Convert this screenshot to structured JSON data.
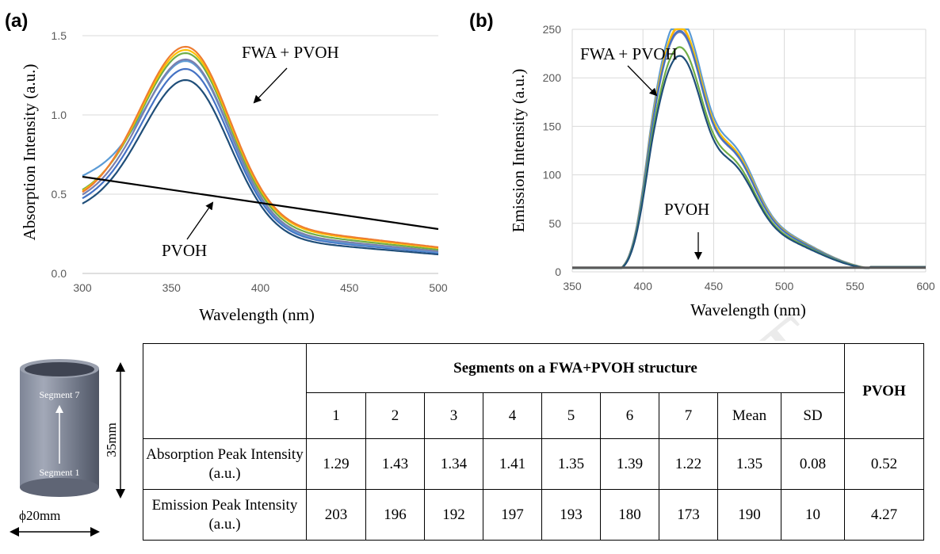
{
  "panel_a": {
    "label": "(a)",
    "annotation_fwa": "FWA + PVOH",
    "annotation_pvoh": "PVOH"
  },
  "panel_b": {
    "label": "(b)",
    "annotation_fwa": "FWA + PVOH",
    "annotation_pvoh": "PVOH"
  },
  "watermark": "SCRIPT",
  "chart_data": [
    {
      "type": "line",
      "panel": "(a)",
      "xlabel": "Wavelength (nm)",
      "ylabel": "Absorption Intensity (a.u.)",
      "xlim": [
        300,
        500
      ],
      "ylim": [
        0,
        1.5
      ],
      "xticks": [
        300,
        350,
        400,
        450,
        500
      ],
      "yticks": [
        0.0,
        0.5,
        1.0,
        1.5
      ],
      "ytick_labels": [
        "0.0",
        "0.5",
        "1.0",
        "1.5"
      ],
      "grid": "horizontal",
      "series": [
        {
          "color": "#1f4e79",
          "peak": 1.22,
          "tail": 0.12,
          "start": 0.37
        },
        {
          "color": "#4472c4",
          "peak": 1.29,
          "tail": 0.13,
          "start": 0.4
        },
        {
          "color": "#5b9bd5",
          "peak": 1.34,
          "tail": 0.135,
          "start": 0.55
        },
        {
          "color": "#7a7fae",
          "peak": 1.35,
          "tail": 0.14,
          "start": 0.42
        },
        {
          "color": "#70ad47",
          "peak": 1.39,
          "tail": 0.15,
          "start": 0.45
        },
        {
          "color": "#ffc000",
          "peak": 1.41,
          "tail": 0.16,
          "start": 0.44
        },
        {
          "color": "#ed7d31",
          "peak": 1.43,
          "tail": 0.165,
          "start": 0.43
        },
        {
          "color": "#000000",
          "linear": [
            [
              300,
              0.61
            ],
            [
              500,
              0.28
            ]
          ]
        }
      ]
    },
    {
      "type": "line",
      "panel": "(b)",
      "xlabel": "Wavelength (nm)",
      "ylabel": "Emission Intensity (a.u.)",
      "xlim": [
        350,
        600
      ],
      "ylim": [
        0,
        250
      ],
      "xticks": [
        350,
        400,
        450,
        500,
        550,
        600
      ],
      "yticks": [
        0,
        50,
        100,
        150,
        200,
        250
      ],
      "ytick_labels": [
        "0",
        "50",
        "100",
        "150",
        "200",
        "250"
      ],
      "grid": "both",
      "series": [
        {
          "color": "#5b9bd5",
          "peak": 203
        },
        {
          "color": "#ed7d31",
          "peak": 196
        },
        {
          "color": "#7a7fae",
          "peak": 192
        },
        {
          "color": "#ffc000",
          "peak": 197
        },
        {
          "color": "#4472c4",
          "peak": 193
        },
        {
          "color": "#70ad47",
          "peak": 180
        },
        {
          "color": "#1f4e79",
          "peak": 173
        },
        {
          "color": "#595959",
          "flat": 4.27
        }
      ]
    }
  ],
  "diagram": {
    "segment_top": "Segment 7",
    "segment_bottom": "Segment 1",
    "height_label": "35mm",
    "diameter_label": "ϕ20mm"
  },
  "table": {
    "group_header": "Segments on a FWA+PVOH structure",
    "pvoh_header": "PVOH",
    "columns": [
      "1",
      "2",
      "3",
      "4",
      "5",
      "6",
      "7",
      "Mean",
      "SD"
    ],
    "rows": [
      {
        "label": "Absorption Peak Intensity (a.u.)",
        "values": [
          "1.29",
          "1.43",
          "1.34",
          "1.41",
          "1.35",
          "1.39",
          "1.22",
          "1.35",
          "0.08"
        ],
        "pvoh": "0.52"
      },
      {
        "label": "Emission Peak Intensity (a.u.)",
        "values": [
          "203",
          "196",
          "192",
          "197",
          "193",
          "180",
          "173",
          "190",
          "10"
        ],
        "pvoh": "4.27"
      }
    ]
  }
}
